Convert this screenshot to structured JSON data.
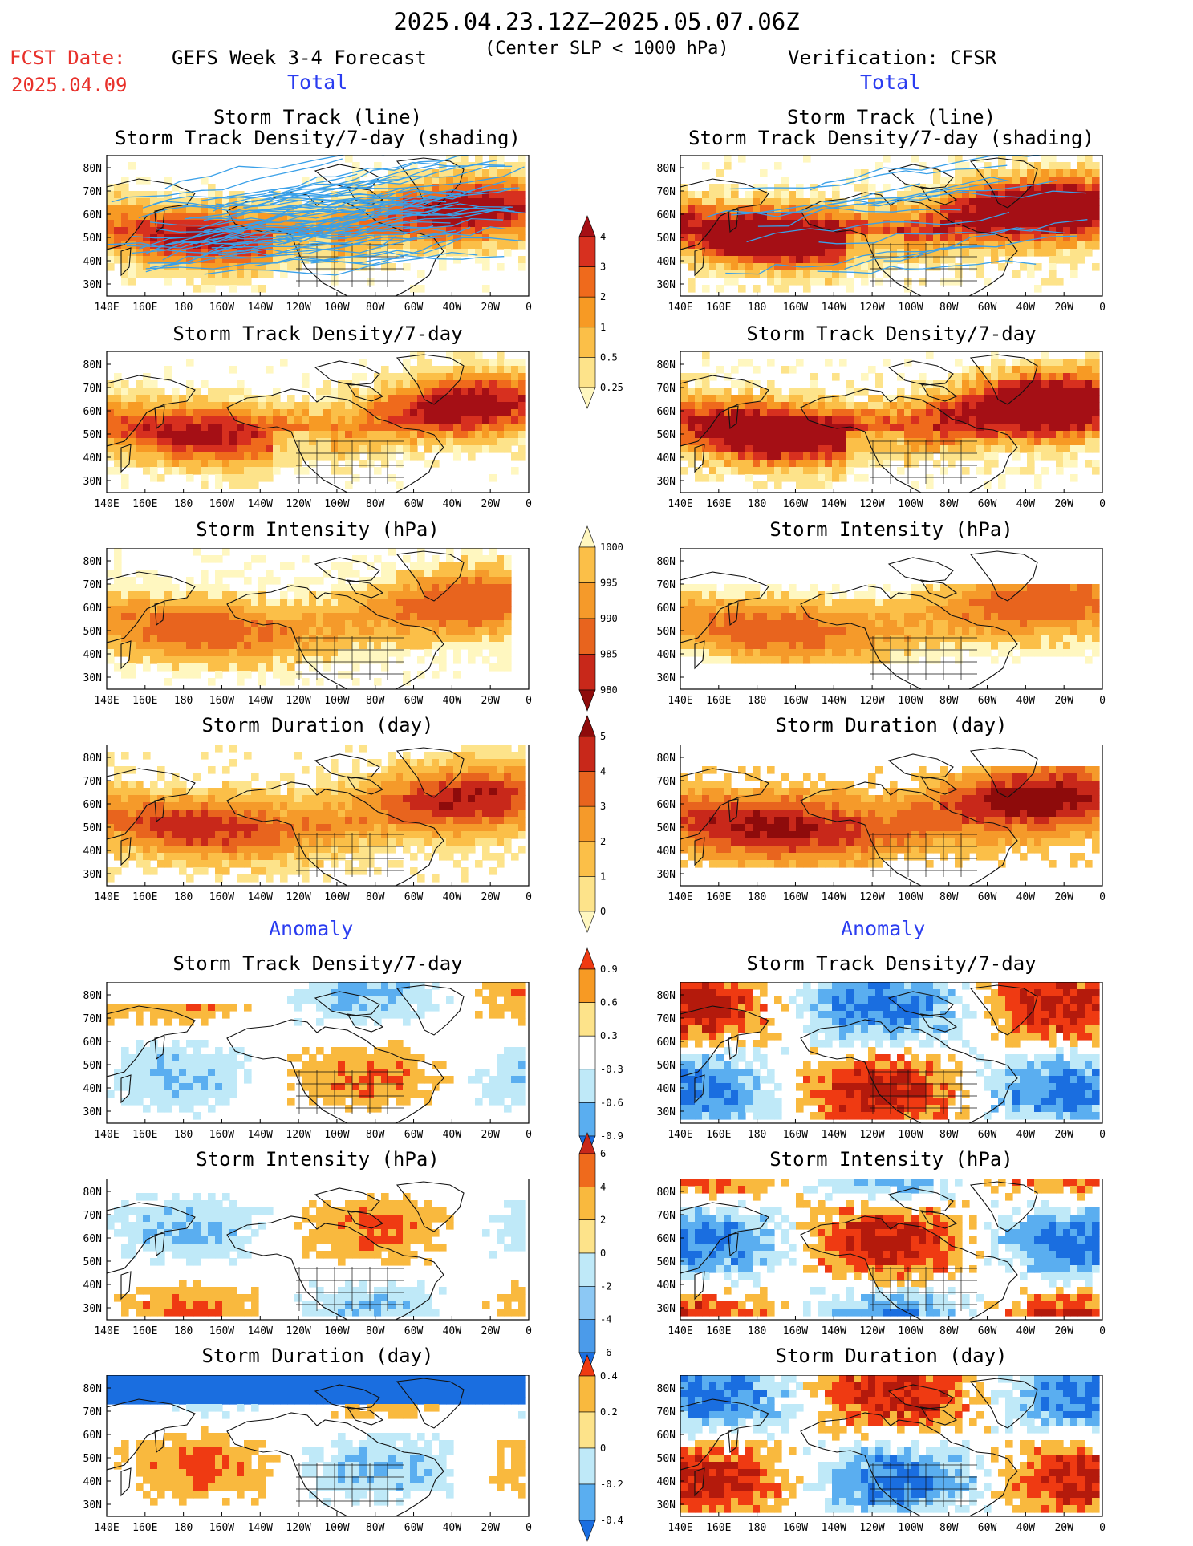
{
  "header": {
    "period": "2025.04.23.12Z–2025.05.07.06Z",
    "fcst_label": "FCST Date:",
    "fcst_date": "2025.04.09",
    "left_title": "GEFS Week 3-4 Forecast",
    "criterion": "(Center SLP < 1000 hPa)",
    "right_title": "Verification: CFSR",
    "total_left": "Total",
    "total_right": "Total",
    "anomaly_left": "Anomaly",
    "anomaly_right": "Anomaly"
  },
  "panel_titles": {
    "p1": [
      "Storm Track (line)",
      "Storm Track Density/7-day (shading)"
    ],
    "p2": "Storm Track Density/7-day",
    "p3": "Storm Intensity (hPa)",
    "p4": "Storm Duration (day)",
    "p5": "Storm Track Density/7-day",
    "p6": "Storm Intensity (hPa)",
    "p7": "Storm Duration (day)"
  },
  "axes": {
    "lat_labels": [
      "80N",
      "70N",
      "60N",
      "50N",
      "40N",
      "30N"
    ],
    "lon_labels": [
      "140E",
      "160E",
      "180",
      "160W",
      "140W",
      "120W",
      "100W",
      "80W",
      "60W",
      "40W",
      "20W",
      "0"
    ]
  },
  "colorbars": {
    "density_total": {
      "labels": [
        "4",
        "3",
        "2",
        "1",
        "0.5",
        "0.25"
      ],
      "colors": [
        "#a50f15",
        "#d7301f",
        "#ef6a1c",
        "#f79a24",
        "#fbbf48",
        "#fde38a",
        "#fff7c0"
      ]
    },
    "intensity_total": {
      "labels": [
        "1000",
        "995",
        "990",
        "985",
        "980"
      ],
      "colors": [
        "#fff7c0",
        "#fbbf48",
        "#f59a2a",
        "#e8641e",
        "#c8281a",
        "#8e0b0b"
      ]
    },
    "duration_total": {
      "labels": [
        "5",
        "4",
        "3",
        "2",
        "1",
        "0"
      ],
      "colors": [
        "#8e0b0b",
        "#c8281a",
        "#e8641e",
        "#f59a2a",
        "#fbbf48",
        "#fde38a",
        "#fff7c0"
      ]
    },
    "density_anom": {
      "labels": [
        "0.9",
        "0.6",
        "0.3",
        "-0.3",
        "-0.6",
        "-0.9"
      ],
      "colors": [
        "#ef3a12",
        "#f79a24",
        "#fde38a",
        "#ffffff",
        "#bfe9f8",
        "#5aaef0",
        "#1a6ee0"
      ]
    },
    "intensity_anom": {
      "labels": [
        "6",
        "4",
        "2",
        "0",
        "-2",
        "-4",
        "-6"
      ],
      "colors": [
        "#c8281a",
        "#ef6a1c",
        "#f9b93e",
        "#fde38a",
        "#bfe9f8",
        "#8cc8f4",
        "#4b9bea",
        "#1a6ee0"
      ]
    },
    "duration_anom": {
      "labels": [
        "0.4",
        "0.2",
        "0",
        "-0.2",
        "-0.4"
      ],
      "colors": [
        "#ef3a12",
        "#f9b93e",
        "#fde38a",
        "#bfe9f8",
        "#5aaef0",
        "#1a6ee0"
      ]
    }
  }
}
